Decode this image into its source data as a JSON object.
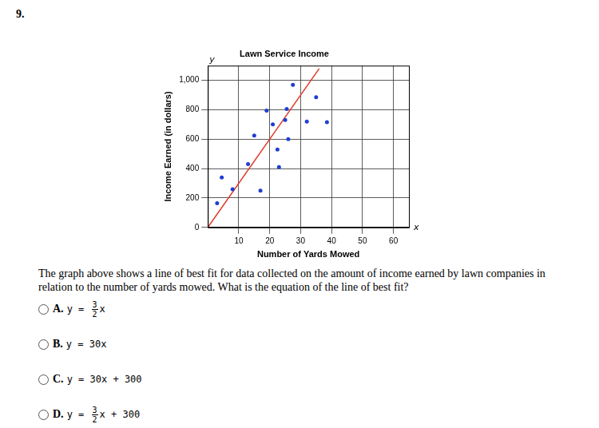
{
  "number": "9.",
  "chart_data": {
    "type": "scatter",
    "title": "Lawn Service Income",
    "x_label": "Number of Yards Mowed",
    "y_label": "Income Earned (in dollars)",
    "axis_letters": {
      "x": "x",
      "y": "y"
    },
    "xlim": [
      0,
      65
    ],
    "xticks": [
      10,
      20,
      30,
      40,
      50,
      60
    ],
    "ylim": [
      0,
      1100
    ],
    "yticks": [
      0,
      200,
      400,
      600,
      800,
      {
        "value": 1000,
        "label": "1,000"
      }
    ],
    "grid": true,
    "series": [
      {
        "type": "scatter",
        "color": "#1f3fd0",
        "marker": "circle",
        "x": [
          3,
          4.5,
          8,
          13,
          15,
          17,
          19,
          21,
          22.5,
          23,
          25,
          25.5,
          26,
          27.5,
          32,
          35,
          38.5
        ],
        "values": [
          165,
          340,
          260,
          430,
          625,
          250,
          795,
          700,
          530,
          410,
          730,
          805,
          600,
          970,
          720,
          885,
          715
        ]
      },
      {
        "type": "line",
        "color": "#e0392b",
        "line_style": "solid",
        "x": [
          0,
          36
        ],
        "values": [
          0,
          1080
        ]
      }
    ]
  },
  "question": "The graph above shows a line of best fit for data collected on the amount of income earned by lawn companies in relation to the number of yards mowed. What is the equation of the line of best fit?",
  "options": [
    {
      "letter": "A.",
      "before": "y =",
      "numerator": "3",
      "denominator": "2",
      "after": "x"
    },
    {
      "letter": "B.",
      "before": "y =",
      "after": "30x"
    },
    {
      "letter": "C.",
      "before": "y =",
      "after": "30x + 300"
    },
    {
      "letter": "D.",
      "before": "y =",
      "numerator": "3",
      "denominator": "2",
      "after": "x + 300"
    }
  ]
}
